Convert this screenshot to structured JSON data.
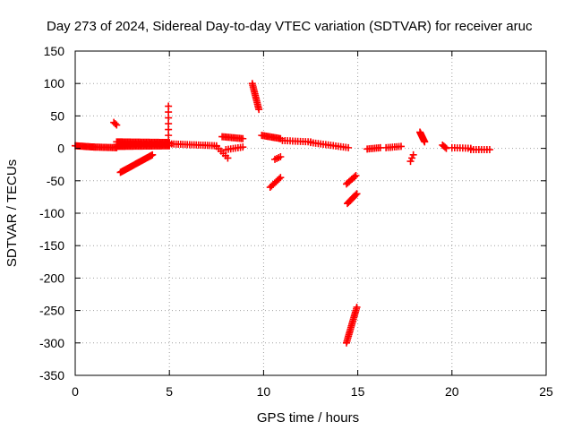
{
  "chart_data": {
    "type": "scatter",
    "title": "Day 273 of 2024, Sidereal Day-to-day VTEC variation (SDTVAR) for receiver aruc",
    "xlabel": "GPS time / hours",
    "ylabel": "SDTVAR / TECUs",
    "xlim": [
      0,
      25
    ],
    "ylim": [
      -350,
      150
    ],
    "xticks": [
      0,
      5,
      10,
      15,
      20,
      25
    ],
    "yticks": [
      150,
      100,
      50,
      0,
      -50,
      -100,
      -150,
      -200,
      -250,
      -300,
      -350
    ],
    "xtick_labels": [
      "0",
      "5",
      "10",
      "15",
      "20",
      "25"
    ],
    "ytick_labels": [
      "150",
      "100",
      "50",
      "0",
      "-50",
      "-100",
      "-150",
      "-200",
      "-250",
      "-300",
      "-350"
    ],
    "grid": true,
    "marker": "+",
    "marker_color": "#ff0000",
    "series": [
      {
        "name": "SDTVAR",
        "segments": [
          {
            "x": [
              0.0,
              1.0
            ],
            "y": [
              4,
              2
            ],
            "n": 16
          },
          {
            "x": [
              1.0,
              2.2
            ],
            "y": [
              2,
              1
            ],
            "n": 16
          },
          {
            "x": [
              2.05,
              2.2
            ],
            "y": [
              40,
              36
            ],
            "n": 3
          },
          {
            "x": [
              2.2,
              5.0
            ],
            "y": [
              10,
              9
            ],
            "n": 40
          },
          {
            "x": [
              2.2,
              5.0
            ],
            "y": [
              3,
              4
            ],
            "n": 40
          },
          {
            "x": [
              2.2,
              5.0
            ],
            "y": [
              6,
              7
            ],
            "n": 30
          },
          {
            "x": [
              2.4,
              4.1
            ],
            "y": [
              -37,
              -10
            ],
            "n": 32
          },
          {
            "x": [
              4.95,
              4.95
            ],
            "y": [
              65,
              20
            ],
            "n": 6
          },
          {
            "x": [
              5.0,
              7.5
            ],
            "y": [
              7,
              4
            ],
            "n": 22
          },
          {
            "x": [
              7.5,
              8.1
            ],
            "y": [
              3,
              -15
            ],
            "n": 6
          },
          {
            "x": [
              7.8,
              8.9
            ],
            "y": [
              18,
              15
            ],
            "n": 14
          },
          {
            "x": [
              8.0,
              8.9
            ],
            "y": [
              -2,
              2
            ],
            "n": 8
          },
          {
            "x": [
              9.4,
              9.75
            ],
            "y": [
              100,
              60
            ],
            "n": 16
          },
          {
            "x": [
              9.9,
              10.9
            ],
            "y": [
              20,
              15
            ],
            "n": 14
          },
          {
            "x": [
              10.35,
              10.9
            ],
            "y": [
              -60,
              -45
            ],
            "n": 8
          },
          {
            "x": [
              10.6,
              10.9
            ],
            "y": [
              -17,
              -13
            ],
            "n": 4
          },
          {
            "x": [
              11.0,
              12.5
            ],
            "y": [
              12,
              10
            ],
            "n": 12
          },
          {
            "x": [
              12.5,
              14.5
            ],
            "y": [
              9,
              1
            ],
            "n": 16
          },
          {
            "x": [
              14.4,
              14.9
            ],
            "y": [
              -55,
              -42
            ],
            "n": 8
          },
          {
            "x": [
              14.45,
              14.95
            ],
            "y": [
              -85,
              -70
            ],
            "n": 10
          },
          {
            "x": [
              14.4,
              14.95
            ],
            "y": [
              -300,
              -245
            ],
            "n": 22
          },
          {
            "x": [
              15.5,
              16.2
            ],
            "y": [
              -1,
              1
            ],
            "n": 8
          },
          {
            "x": [
              16.5,
              17.3
            ],
            "y": [
              1,
              3
            ],
            "n": 8
          },
          {
            "x": [
              17.8,
              17.95
            ],
            "y": [
              -20,
              -10
            ],
            "n": 3
          },
          {
            "x": [
              18.3,
              18.55
            ],
            "y": [
              25,
              10
            ],
            "n": 12
          },
          {
            "x": [
              19.5,
              19.7
            ],
            "y": [
              5,
              0
            ],
            "n": 4
          },
          {
            "x": [
              20.0,
              21.0
            ],
            "y": [
              1,
              0
            ],
            "n": 8
          },
          {
            "x": [
              21.0,
              22.0
            ],
            "y": [
              -2,
              -2
            ],
            "n": 8
          }
        ]
      }
    ]
  }
}
